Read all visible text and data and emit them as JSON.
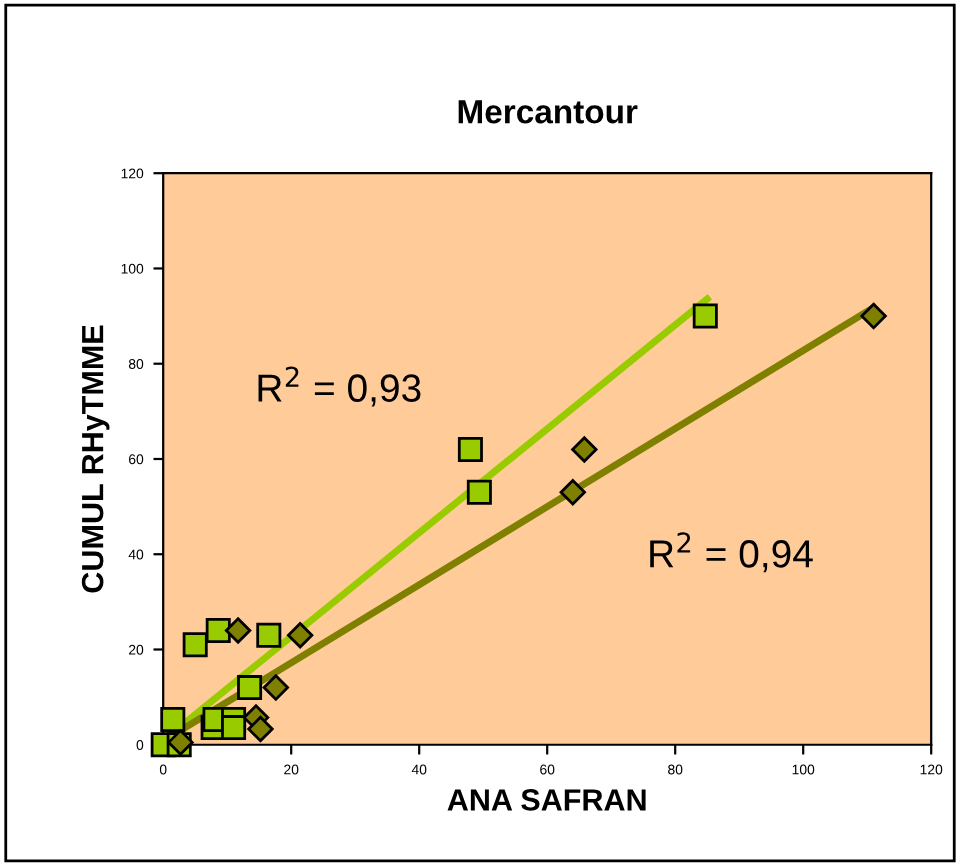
{
  "chart_data": {
    "type": "scatter",
    "title": "Mercantour",
    "xlabel": "ANA SAFRAN",
    "ylabel": "CUMUL RHyTMME",
    "xlim": [
      0,
      120
    ],
    "ylim": [
      0,
      120
    ],
    "xticks": [
      0,
      20,
      40,
      60,
      80,
      100,
      120
    ],
    "yticks": [
      0,
      20,
      40,
      60,
      80,
      100,
      120
    ],
    "grid": false,
    "legend": false,
    "series": [
      {
        "marker": "square",
        "color": "#99cc00",
        "x": [
          0,
          1.5,
          2.5,
          5,
          8.6,
          7.8,
          8.1,
          11,
          11,
          13.5,
          16.5,
          48,
          49.4,
          84.7
        ],
        "values": [
          0,
          5.3,
          0,
          21,
          24,
          3.6,
          5.3,
          5.3,
          3.6,
          12,
          23,
          62,
          53,
          90
        ]
      },
      {
        "marker": "diamond",
        "color": "#808000",
        "x": [
          2.7,
          11.7,
          21.4,
          17.6,
          14.5,
          15.2,
          64,
          65.8,
          111
        ],
        "values": [
          0.5,
          24,
          23,
          12,
          5.7,
          3.3,
          53,
          62,
          90
        ]
      },
      {
        "type": "line",
        "marker": "none",
        "color": "#99cc00",
        "x": [
          0.2,
          85
        ],
        "values": [
          1.1,
          93.6
        ]
      },
      {
        "type": "line",
        "marker": "none",
        "color": "#808000",
        "x": [
          0,
          111
        ],
        "values": [
          0.8,
          91.8
        ]
      }
    ],
    "annotations": [
      "R$^{2}$ = 0,93",
      "R$^{2}$ = 0,94"
    ]
  }
}
